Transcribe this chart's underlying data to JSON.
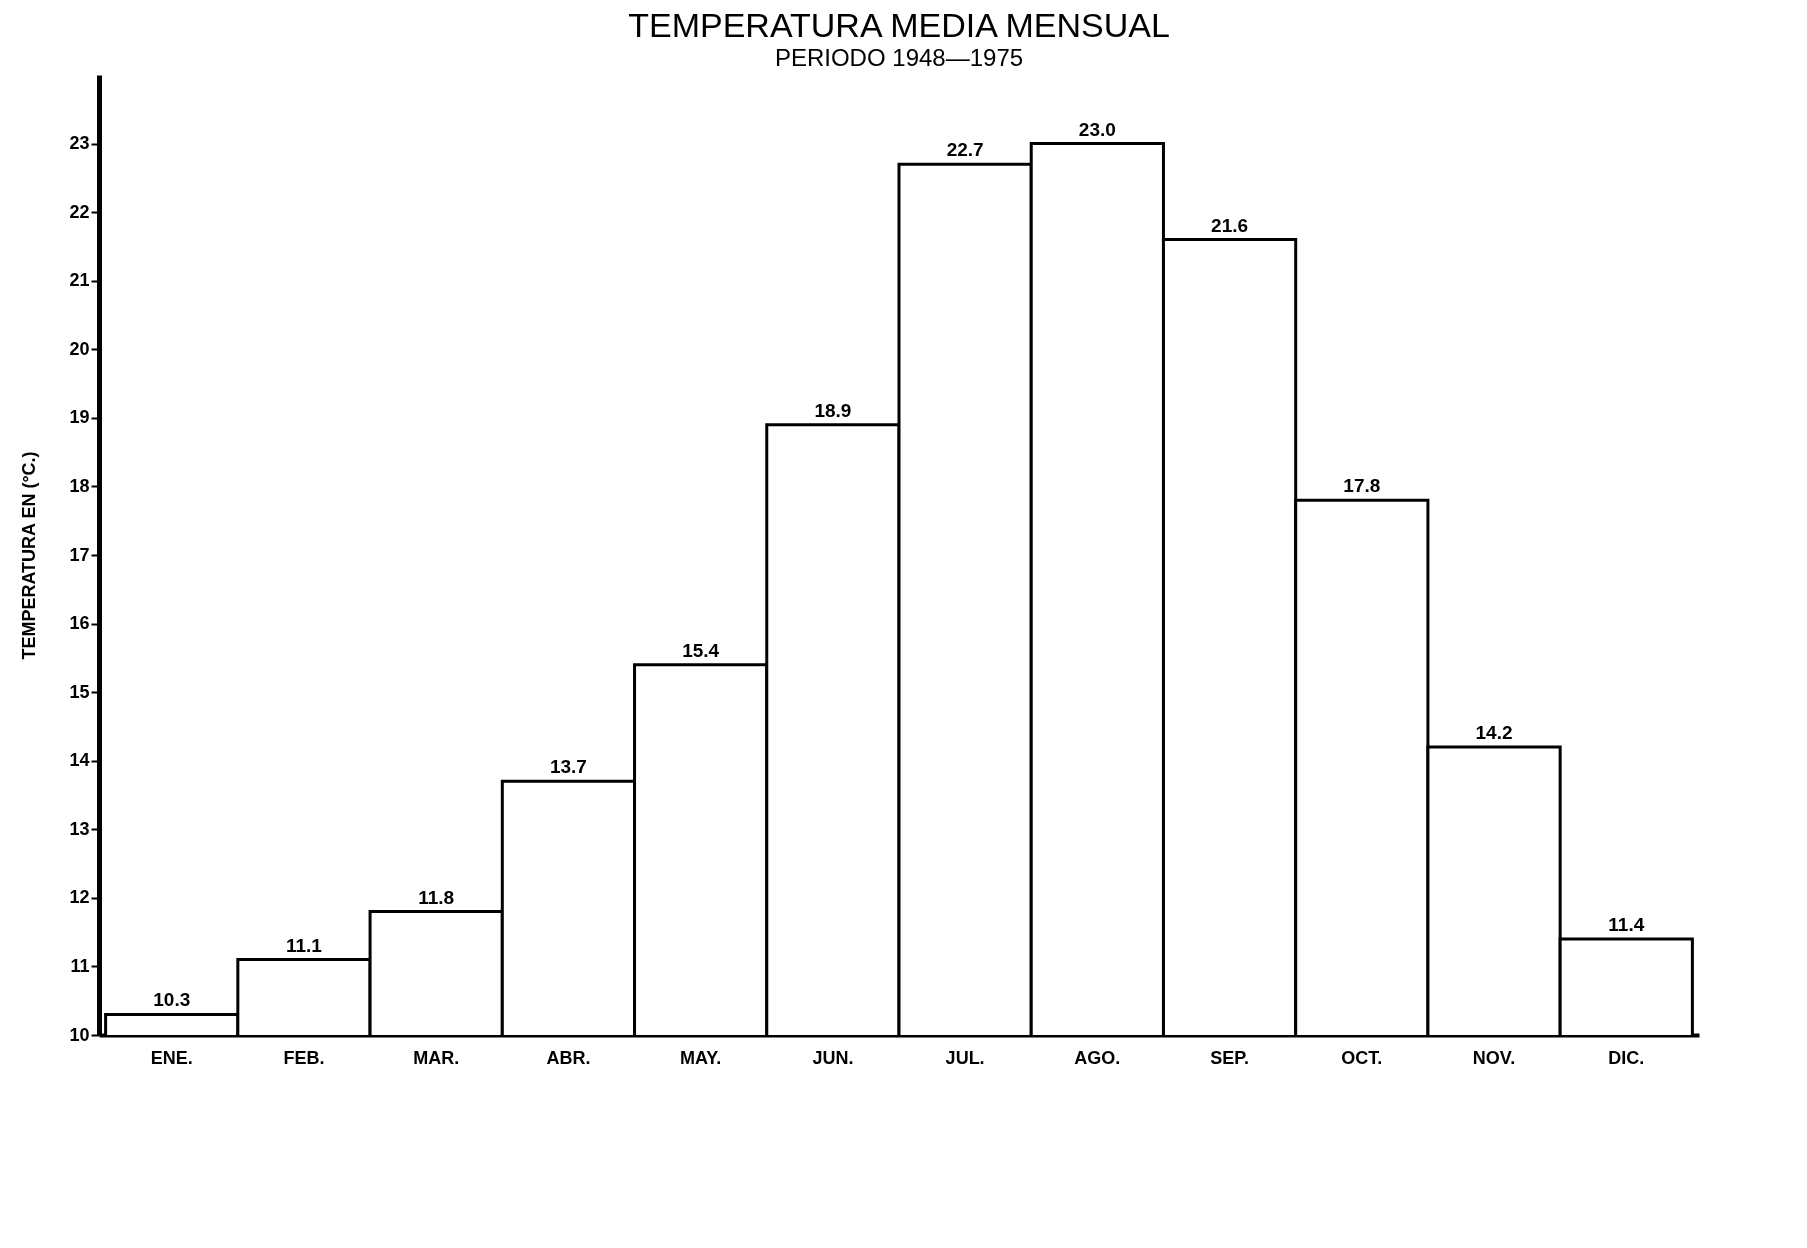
{
  "chart_data": {
    "type": "bar",
    "title": "TEMPERATURA MEDIA MENSUAL",
    "subtitle": "PERIODO 1948—1975",
    "ylabel": "TEMPERATURA EN (°C.)",
    "categories": [
      "ENE.",
      "FEB.",
      "MAR.",
      "ABR.",
      "MAY.",
      "JUN.",
      "JUL.",
      "AGO.",
      "SEP.",
      "OCT.",
      "NOV.",
      "DIC."
    ],
    "values": [
      10.3,
      11.1,
      11.8,
      13.7,
      15.4,
      18.9,
      22.7,
      23.0,
      21.6,
      17.8,
      14.2,
      11.4
    ],
    "value_labels": [
      "10.3",
      "11.1",
      "11.8",
      "13.7",
      "15.4",
      "18.9",
      "22.7",
      "23.0",
      "21.6",
      "17.8",
      "14.2",
      "11.4"
    ],
    "color": "#ffffff",
    "ylim": [
      10,
      24
    ],
    "yticks": [
      10,
      11,
      12,
      13,
      14,
      15,
      16,
      17,
      18,
      19,
      20,
      21,
      22,
      23
    ]
  }
}
